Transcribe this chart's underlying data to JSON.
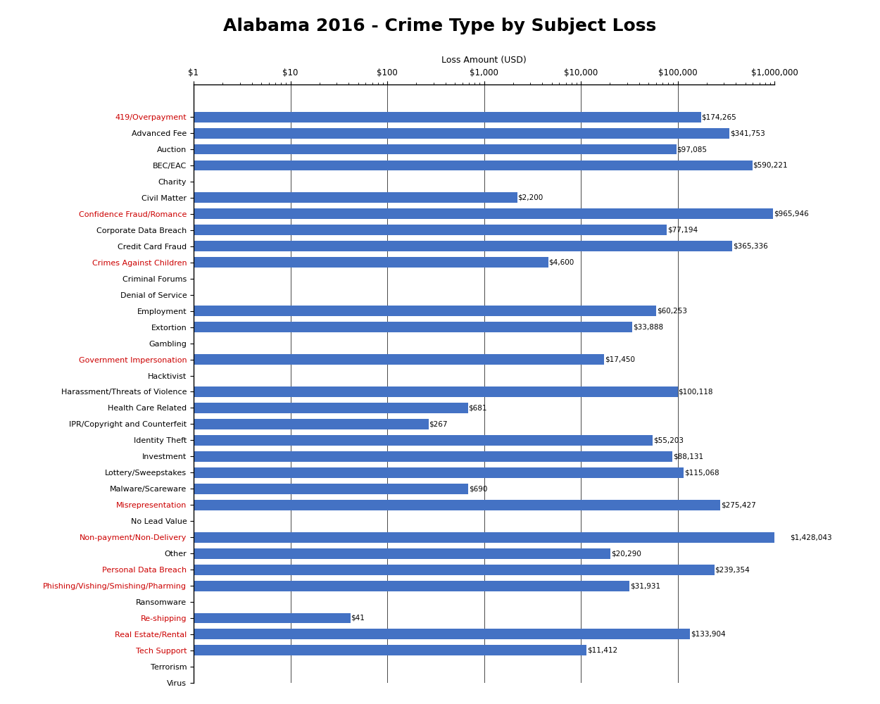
{
  "title": "Alabama 2016 - Crime Type by Subject Loss",
  "xlabel": "Loss Amount (USD)",
  "categories": [
    "419/Overpayment",
    "Advanced Fee",
    "Auction",
    "BEC/EAC",
    "Charity",
    "Civil Matter",
    "Confidence Fraud/Romance",
    "Corporate Data Breach",
    "Credit Card Fraud",
    "Crimes Against Children",
    "Criminal Forums",
    "Denial of Service",
    "Employment",
    "Extortion",
    "Gambling",
    "Government Impersonation",
    "Hacktivist",
    "Harassment/Threats of Violence",
    "Health Care Related",
    "IPR/Copyright and Counterfeit",
    "Identity Theft",
    "Investment",
    "Lottery/Sweepstakes",
    "Malware/Scareware",
    "Misrepresentation",
    "No Lead Value",
    "Non-payment/Non-Delivery",
    "Other",
    "Personal Data Breach",
    "Phishing/Vishing/Smishing/Pharming",
    "Ransomware",
    "Re-shipping",
    "Real Estate/Rental",
    "Tech Support",
    "Terrorism",
    "Virus"
  ],
  "values": [
    174265,
    341753,
    97085,
    590221,
    0,
    2200,
    965946,
    77194,
    365336,
    4600,
    0,
    0,
    60253,
    33888,
    0,
    17450,
    0,
    100118,
    681,
    267,
    55203,
    88131,
    115068,
    690,
    275427,
    0,
    1428043,
    20290,
    239354,
    31931,
    0,
    41,
    133904,
    11412,
    0,
    0
  ],
  "value_labels": [
    "$174,265",
    "$341,753",
    "$97,085",
    "$590,221",
    "",
    "$2,200",
    "$965,946",
    "$77,194",
    "$365,336",
    "$4,600",
    "",
    "",
    "$60,253",
    "$33,888",
    "",
    "$17,450",
    "",
    "$100,118",
    "$681",
    "$267",
    "$55,203",
    "$88,131",
    "$115,068",
    "$690",
    "$275,427",
    "",
    "$1,428,043",
    "$20,290",
    "$239,354",
    "$31,931",
    "",
    "$41",
    "$133,904",
    "$11,412",
    "",
    ""
  ],
  "bar_color": "#4472C4",
  "label_color_red": "#CC0000",
  "background_color": "#FFFFFF",
  "xmin": 1,
  "xmax": 1000000,
  "tick_positions": [
    1,
    10,
    100,
    1000,
    10000,
    100000,
    1000000
  ],
  "tick_labels": [
    "$1",
    "$10",
    "$100",
    "$1,000",
    "$10,000",
    "$100,000",
    "$1,000,000"
  ],
  "bar_height": 0.65,
  "title_fontsize": 18,
  "label_fontsize": 8,
  "tick_fontsize": 8.5,
  "value_label_fontsize": 7.5
}
